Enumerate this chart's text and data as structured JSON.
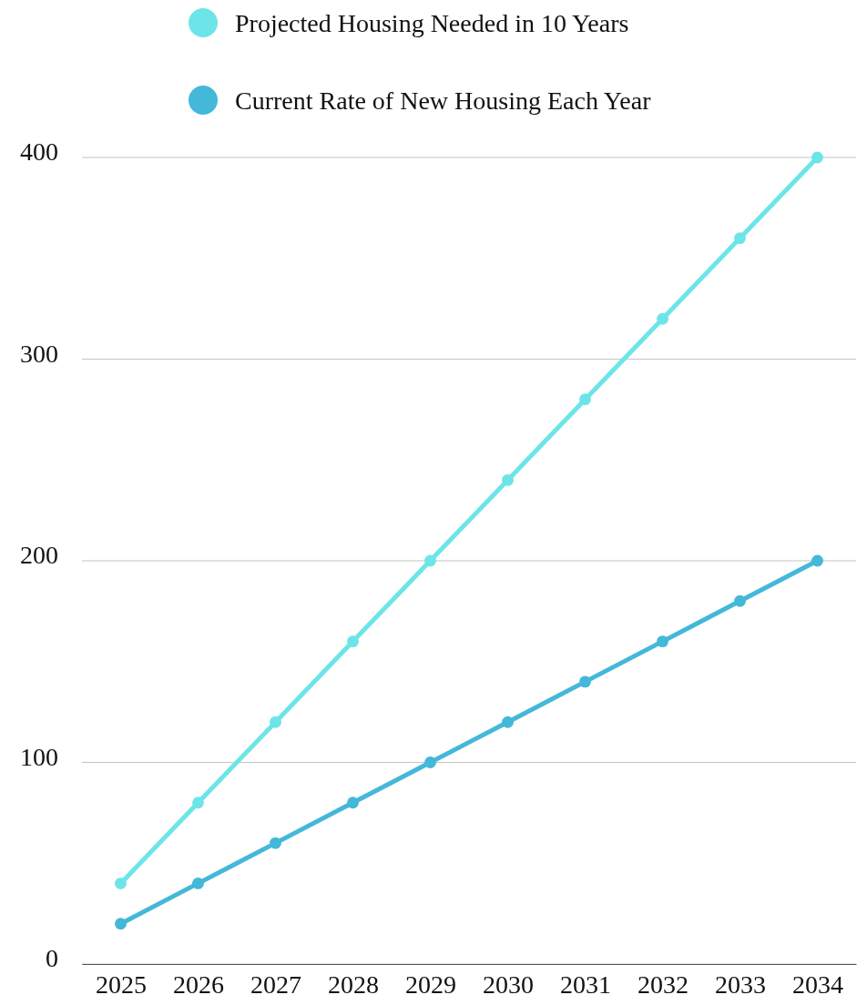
{
  "chart_data": {
    "type": "line",
    "categories": [
      "2025",
      "2026",
      "2027",
      "2028",
      "2029",
      "2030",
      "2031",
      "2032",
      "2033",
      "2034"
    ],
    "series": [
      {
        "name": "Projected Housing Needed in 10 Years",
        "color": "#6de5e8",
        "values": [
          40,
          80,
          120,
          160,
          200,
          240,
          280,
          320,
          360,
          400
        ]
      },
      {
        "name": "Current Rate of New Housing Each Year",
        "color": "#44b8d9",
        "values": [
          20,
          40,
          60,
          80,
          100,
          120,
          140,
          160,
          180,
          200
        ]
      }
    ],
    "ylim": [
      0,
      400
    ],
    "yticks": [
      0,
      100,
      200,
      300,
      400
    ],
    "grid": "y",
    "legend": "top",
    "marker": "circle",
    "line_style": "solid"
  }
}
